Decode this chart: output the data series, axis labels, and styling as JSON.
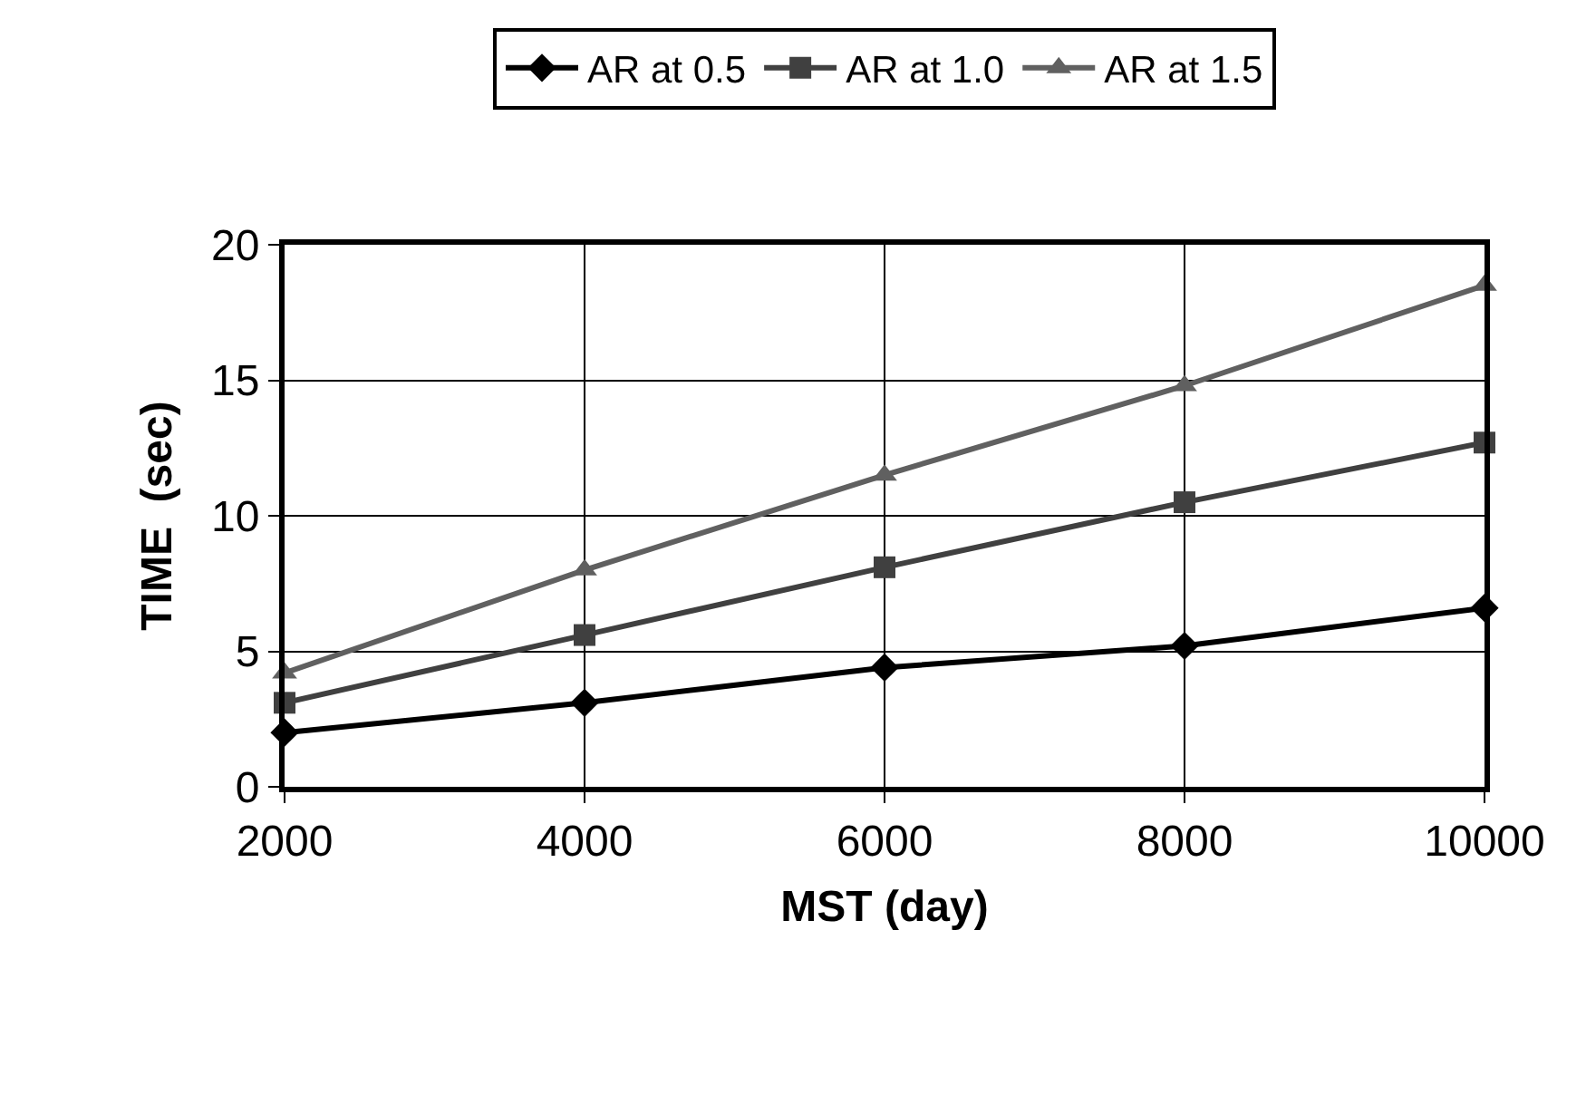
{
  "chart_data": {
    "type": "line",
    "xlabel": "MST (day)",
    "ylabel": "TIME  (sec)",
    "x": [
      2000,
      4000,
      6000,
      8000,
      10000
    ],
    "series": [
      {
        "name": "AR at 0.5",
        "color": "#000000",
        "marker": "diamond",
        "values": [
          2.0,
          3.1,
          4.4,
          5.2,
          6.6
        ]
      },
      {
        "name": "AR at 1.0",
        "color": "#404040",
        "marker": "square",
        "values": [
          3.1,
          5.6,
          8.1,
          10.5,
          12.7
        ]
      },
      {
        "name": "AR at 1.5",
        "color": "#606060",
        "marker": "triangle",
        "values": [
          4.2,
          8.0,
          11.5,
          14.8,
          18.5
        ]
      }
    ],
    "xlim": [
      2000,
      10000
    ],
    "xticks": [
      2000,
      4000,
      6000,
      8000,
      10000
    ],
    "ylim": [
      0,
      20
    ],
    "yticks": [
      0,
      5,
      10,
      15,
      20
    ],
    "grid": true,
    "legend": "top",
    "line_style": "solid"
  }
}
